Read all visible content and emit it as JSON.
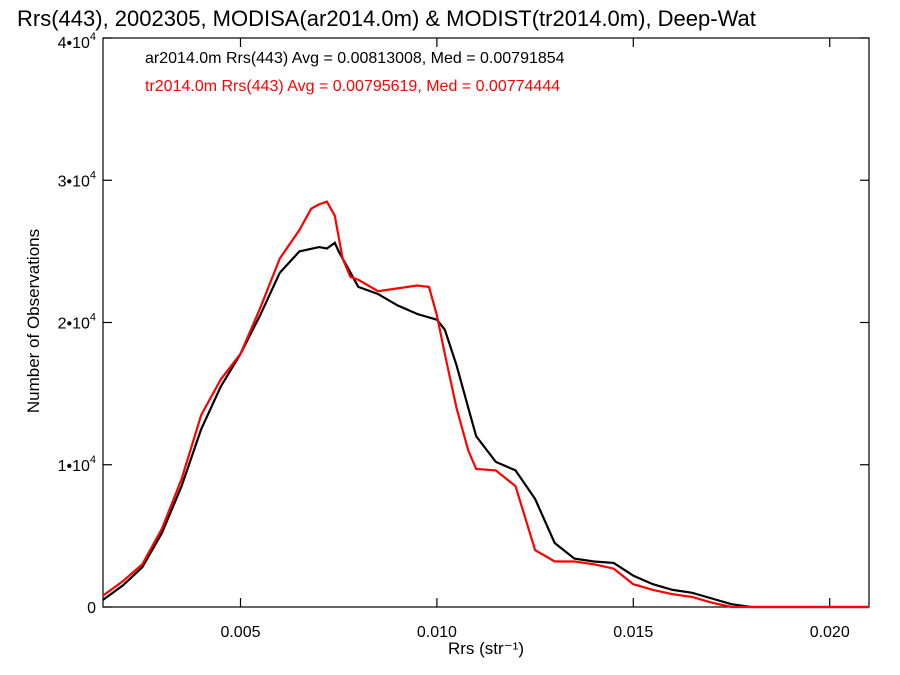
{
  "chart_data": {
    "type": "line",
    "title": "Rrs(443), 2002305, MODISA(ar2014.0m) & MODIST(tr2014.0m), Deep-Wat",
    "xlabel": "Rrs (str⁻¹)",
    "ylabel": "Number of Observations",
    "xlim": [
      0.0015,
      0.021
    ],
    "ylim": [
      0,
      40000
    ],
    "xticks": [
      {
        "value": 0.005,
        "label": "0.005"
      },
      {
        "value": 0.01,
        "label": "0.010"
      },
      {
        "value": 0.015,
        "label": "0.015"
      },
      {
        "value": 0.02,
        "label": "0.020"
      }
    ],
    "yticks": [
      {
        "value": 0,
        "base": "0",
        "exp": ""
      },
      {
        "value": 10000,
        "base": "1•10",
        "exp": "4"
      },
      {
        "value": 20000,
        "base": "2•10",
        "exp": "4"
      },
      {
        "value": 30000,
        "base": "3•10",
        "exp": "4"
      },
      {
        "value": 40000,
        "base": "4•10",
        "exp": "4"
      }
    ],
    "grid": false,
    "legend_position": "top-left",
    "series": [
      {
        "name": "ar2014.0m",
        "legend_text": "ar2014.0m Rrs(443) Avg = 0.00813008, Med = 0.00791854",
        "color": "#000000",
        "x": [
          0.0015,
          0.002,
          0.0025,
          0.003,
          0.0035,
          0.004,
          0.0045,
          0.005,
          0.0055,
          0.006,
          0.0065,
          0.007,
          0.0072,
          0.0074,
          0.0075,
          0.0078,
          0.008,
          0.0085,
          0.009,
          0.0095,
          0.01,
          0.0102,
          0.0105,
          0.0108,
          0.011,
          0.0115,
          0.012,
          0.0125,
          0.013,
          0.0135,
          0.014,
          0.0145,
          0.015,
          0.0155,
          0.016,
          0.0165,
          0.017,
          0.0175,
          0.018,
          0.0185,
          0.019,
          0.02,
          0.021
        ],
        "y": [
          500,
          1500,
          2800,
          5200,
          8500,
          12500,
          15500,
          17800,
          20500,
          23500,
          25000,
          25300,
          25200,
          25600,
          25000,
          23500,
          22500,
          22000,
          21200,
          20600,
          20200,
          19500,
          17000,
          14000,
          12000,
          10200,
          9600,
          7600,
          4500,
          3400,
          3200,
          3100,
          2200,
          1600,
          1200,
          1000,
          600,
          200,
          0,
          0,
          0,
          0,
          0
        ]
      },
      {
        "name": "tr2014.0m",
        "legend_text": "tr2014.0m Rrs(443) Avg = 0.00795619, Med = 0.00774444",
        "color": "#ff0000",
        "x": [
          0.0015,
          0.002,
          0.0025,
          0.003,
          0.0035,
          0.004,
          0.0045,
          0.005,
          0.0055,
          0.006,
          0.0065,
          0.0068,
          0.007,
          0.0072,
          0.0074,
          0.0076,
          0.0078,
          0.008,
          0.0085,
          0.009,
          0.0095,
          0.0098,
          0.01,
          0.0102,
          0.0105,
          0.0108,
          0.011,
          0.0115,
          0.012,
          0.0125,
          0.013,
          0.0135,
          0.014,
          0.0145,
          0.015,
          0.0155,
          0.016,
          0.0165,
          0.017,
          0.0175,
          0.018,
          0.0185,
          0.019,
          0.02,
          0.021
        ],
        "y": [
          800,
          1800,
          3000,
          5500,
          9000,
          13500,
          16000,
          17800,
          21000,
          24500,
          26500,
          28000,
          28300,
          28500,
          27500,
          24500,
          23200,
          23000,
          22200,
          22400,
          22600,
          22500,
          20500,
          17800,
          14000,
          11000,
          9700,
          9600,
          8500,
          4000,
          3200,
          3200,
          3000,
          2700,
          1600,
          1200,
          900,
          700,
          300,
          0,
          0,
          0,
          0,
          0,
          0
        ]
      }
    ]
  }
}
